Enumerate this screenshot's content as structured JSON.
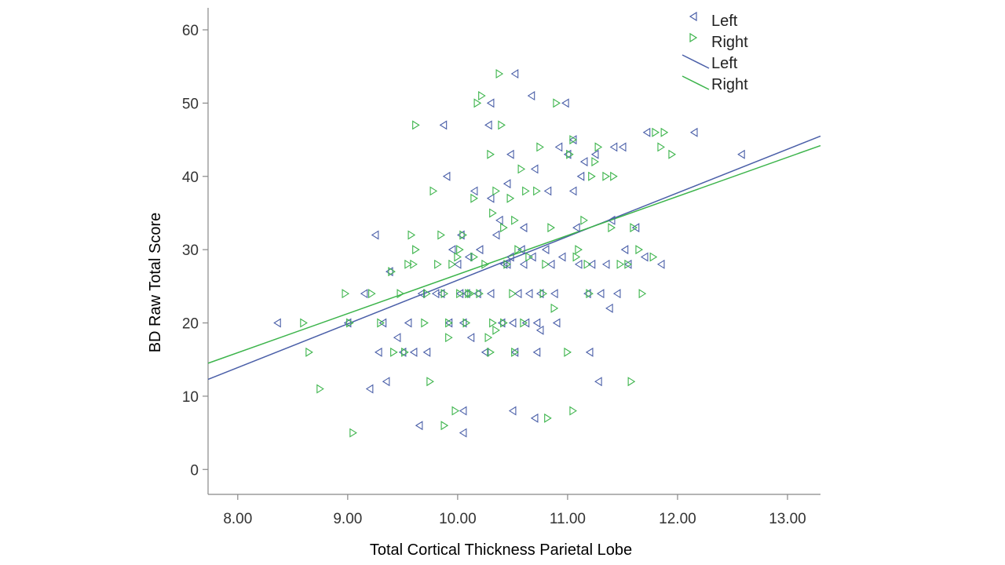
{
  "chart_data": {
    "type": "scatter",
    "xlabel": "Total Cortical Thickness Parietal Lobe",
    "ylabel": "BD Raw Total Score",
    "xlim": [
      7.73,
      13.3
    ],
    "ylim": [
      -3.4,
      63
    ],
    "x_ticks": [
      "8.00",
      "9.00",
      "10.00",
      "11.00",
      "12.00",
      "13.00"
    ],
    "y_ticks": [
      "0",
      "10",
      "20",
      "30",
      "40",
      "50",
      "60"
    ],
    "legend": {
      "position": "top-right",
      "entries": [
        {
          "label": "Left",
          "kind": "marker-left"
        },
        {
          "label": "Right",
          "kind": "marker-right"
        },
        {
          "label": "Left",
          "kind": "line-left"
        },
        {
          "label": "Right",
          "kind": "line-right"
        }
      ]
    },
    "series": [
      {
        "name": "Left",
        "marker": "triangle-left",
        "color": "#4a5fa8",
        "fit_line": {
          "x": [
            7.73,
            13.3
          ],
          "y": [
            12.3,
            45.5
          ]
        },
        "points": [
          [
            8.36,
            20
          ],
          [
            9.0,
            20
          ],
          [
            9.15,
            24
          ],
          [
            9.2,
            11
          ],
          [
            9.25,
            32
          ],
          [
            9.28,
            16
          ],
          [
            9.32,
            20
          ],
          [
            9.35,
            12
          ],
          [
            9.38,
            27
          ],
          [
            9.45,
            18
          ],
          [
            9.5,
            16
          ],
          [
            9.55,
            20
          ],
          [
            9.6,
            16
          ],
          [
            9.65,
            6
          ],
          [
            9.67,
            24
          ],
          [
            9.72,
            16
          ],
          [
            9.8,
            24
          ],
          [
            9.85,
            24
          ],
          [
            9.87,
            47
          ],
          [
            9.9,
            40
          ],
          [
            9.92,
            20
          ],
          [
            9.95,
            30
          ],
          [
            10.0,
            28
          ],
          [
            10.02,
            24
          ],
          [
            10.03,
            32
          ],
          [
            10.05,
            5
          ],
          [
            10.05,
            8
          ],
          [
            10.05,
            20
          ],
          [
            10.08,
            24
          ],
          [
            10.1,
            29
          ],
          [
            10.12,
            18
          ],
          [
            10.15,
            38
          ],
          [
            10.18,
            24
          ],
          [
            10.2,
            30
          ],
          [
            10.25,
            16
          ],
          [
            10.28,
            47
          ],
          [
            10.3,
            50
          ],
          [
            10.3,
            37
          ],
          [
            10.3,
            24
          ],
          [
            10.35,
            32
          ],
          [
            10.38,
            34
          ],
          [
            10.4,
            20
          ],
          [
            10.42,
            28
          ],
          [
            10.45,
            39
          ],
          [
            10.45,
            28
          ],
          [
            10.48,
            43
          ],
          [
            10.48,
            29
          ],
          [
            10.5,
            8
          ],
          [
            10.5,
            20
          ],
          [
            10.52,
            54
          ],
          [
            10.52,
            16
          ],
          [
            10.55,
            24
          ],
          [
            10.58,
            30
          ],
          [
            10.6,
            33
          ],
          [
            10.6,
            28
          ],
          [
            10.62,
            20
          ],
          [
            10.65,
            24
          ],
          [
            10.67,
            51
          ],
          [
            10.68,
            29
          ],
          [
            10.7,
            41
          ],
          [
            10.7,
            7
          ],
          [
            10.72,
            20
          ],
          [
            10.72,
            16
          ],
          [
            10.75,
            19
          ],
          [
            10.75,
            24
          ],
          [
            10.8,
            30
          ],
          [
            10.82,
            38
          ],
          [
            10.85,
            28
          ],
          [
            10.88,
            24
          ],
          [
            10.9,
            20
          ],
          [
            10.92,
            44
          ],
          [
            10.95,
            29
          ],
          [
            10.98,
            50
          ],
          [
            11.0,
            43
          ],
          [
            11.05,
            45
          ],
          [
            11.05,
            38
          ],
          [
            11.08,
            33
          ],
          [
            11.1,
            28
          ],
          [
            11.12,
            40
          ],
          [
            11.15,
            42
          ],
          [
            11.18,
            24
          ],
          [
            11.2,
            16
          ],
          [
            11.22,
            28
          ],
          [
            11.25,
            43
          ],
          [
            11.28,
            12
          ],
          [
            11.3,
            24
          ],
          [
            11.35,
            28
          ],
          [
            11.38,
            22
          ],
          [
            11.4,
            34
          ],
          [
            11.42,
            44
          ],
          [
            11.45,
            24
          ],
          [
            11.5,
            44
          ],
          [
            11.52,
            30
          ],
          [
            11.55,
            28
          ],
          [
            11.62,
            33
          ],
          [
            11.7,
            29
          ],
          [
            11.72,
            46
          ],
          [
            11.85,
            28
          ],
          [
            12.15,
            46
          ],
          [
            12.58,
            43
          ]
        ]
      },
      {
        "name": "Right",
        "marker": "triangle-right",
        "color": "#3cb44b",
        "fit_line": {
          "x": [
            7.73,
            13.3
          ],
          "y": [
            14.5,
            44.2
          ]
        },
        "points": [
          [
            8.6,
            20
          ],
          [
            8.65,
            16
          ],
          [
            8.75,
            11
          ],
          [
            8.98,
            24
          ],
          [
            9.02,
            20
          ],
          [
            9.05,
            5
          ],
          [
            9.22,
            24
          ],
          [
            9.3,
            20
          ],
          [
            9.4,
            27
          ],
          [
            9.42,
            16
          ],
          [
            9.48,
            24
          ],
          [
            9.52,
            16
          ],
          [
            9.55,
            28
          ],
          [
            9.58,
            32
          ],
          [
            9.6,
            28
          ],
          [
            9.62,
            30
          ],
          [
            9.62,
            47
          ],
          [
            9.7,
            20
          ],
          [
            9.72,
            24
          ],
          [
            9.75,
            12
          ],
          [
            9.78,
            38
          ],
          [
            9.82,
            28
          ],
          [
            9.85,
            32
          ],
          [
            9.88,
            24
          ],
          [
            9.88,
            6
          ],
          [
            9.92,
            18
          ],
          [
            9.92,
            20
          ],
          [
            9.95,
            28
          ],
          [
            9.98,
            8
          ],
          [
            10.0,
            29
          ],
          [
            10.02,
            30
          ],
          [
            10.02,
            24
          ],
          [
            10.05,
            32
          ],
          [
            10.08,
            20
          ],
          [
            10.1,
            24
          ],
          [
            10.12,
            24
          ],
          [
            10.15,
            29
          ],
          [
            10.15,
            37
          ],
          [
            10.18,
            50
          ],
          [
            10.2,
            24
          ],
          [
            10.22,
            51
          ],
          [
            10.25,
            28
          ],
          [
            10.28,
            18
          ],
          [
            10.3,
            43
          ],
          [
            10.3,
            16
          ],
          [
            10.32,
            35
          ],
          [
            10.32,
            20
          ],
          [
            10.35,
            19
          ],
          [
            10.35,
            38
          ],
          [
            10.38,
            54
          ],
          [
            10.4,
            47
          ],
          [
            10.42,
            33
          ],
          [
            10.42,
            20
          ],
          [
            10.45,
            28
          ],
          [
            10.48,
            37
          ],
          [
            10.5,
            24
          ],
          [
            10.52,
            34
          ],
          [
            10.52,
            16
          ],
          [
            10.55,
            30
          ],
          [
            10.58,
            41
          ],
          [
            10.6,
            20
          ],
          [
            10.62,
            38
          ],
          [
            10.65,
            29
          ],
          [
            10.72,
            38
          ],
          [
            10.75,
            44
          ],
          [
            10.78,
            24
          ],
          [
            10.8,
            28
          ],
          [
            10.82,
            7
          ],
          [
            10.85,
            33
          ],
          [
            10.88,
            22
          ],
          [
            10.9,
            50
          ],
          [
            11.0,
            16
          ],
          [
            11.02,
            43
          ],
          [
            11.05,
            45
          ],
          [
            11.05,
            8
          ],
          [
            11.08,
            29
          ],
          [
            11.1,
            30
          ],
          [
            11.15,
            34
          ],
          [
            11.18,
            28
          ],
          [
            11.2,
            24
          ],
          [
            11.22,
            40
          ],
          [
            11.25,
            42
          ],
          [
            11.28,
            44
          ],
          [
            11.35,
            40
          ],
          [
            11.4,
            33
          ],
          [
            11.42,
            40
          ],
          [
            11.48,
            28
          ],
          [
            11.55,
            28
          ],
          [
            11.58,
            12
          ],
          [
            11.6,
            33
          ],
          [
            11.65,
            30
          ],
          [
            11.68,
            24
          ],
          [
            11.78,
            29
          ],
          [
            11.8,
            46
          ],
          [
            11.85,
            44
          ],
          [
            11.88,
            46
          ],
          [
            11.95,
            43
          ]
        ]
      }
    ]
  }
}
